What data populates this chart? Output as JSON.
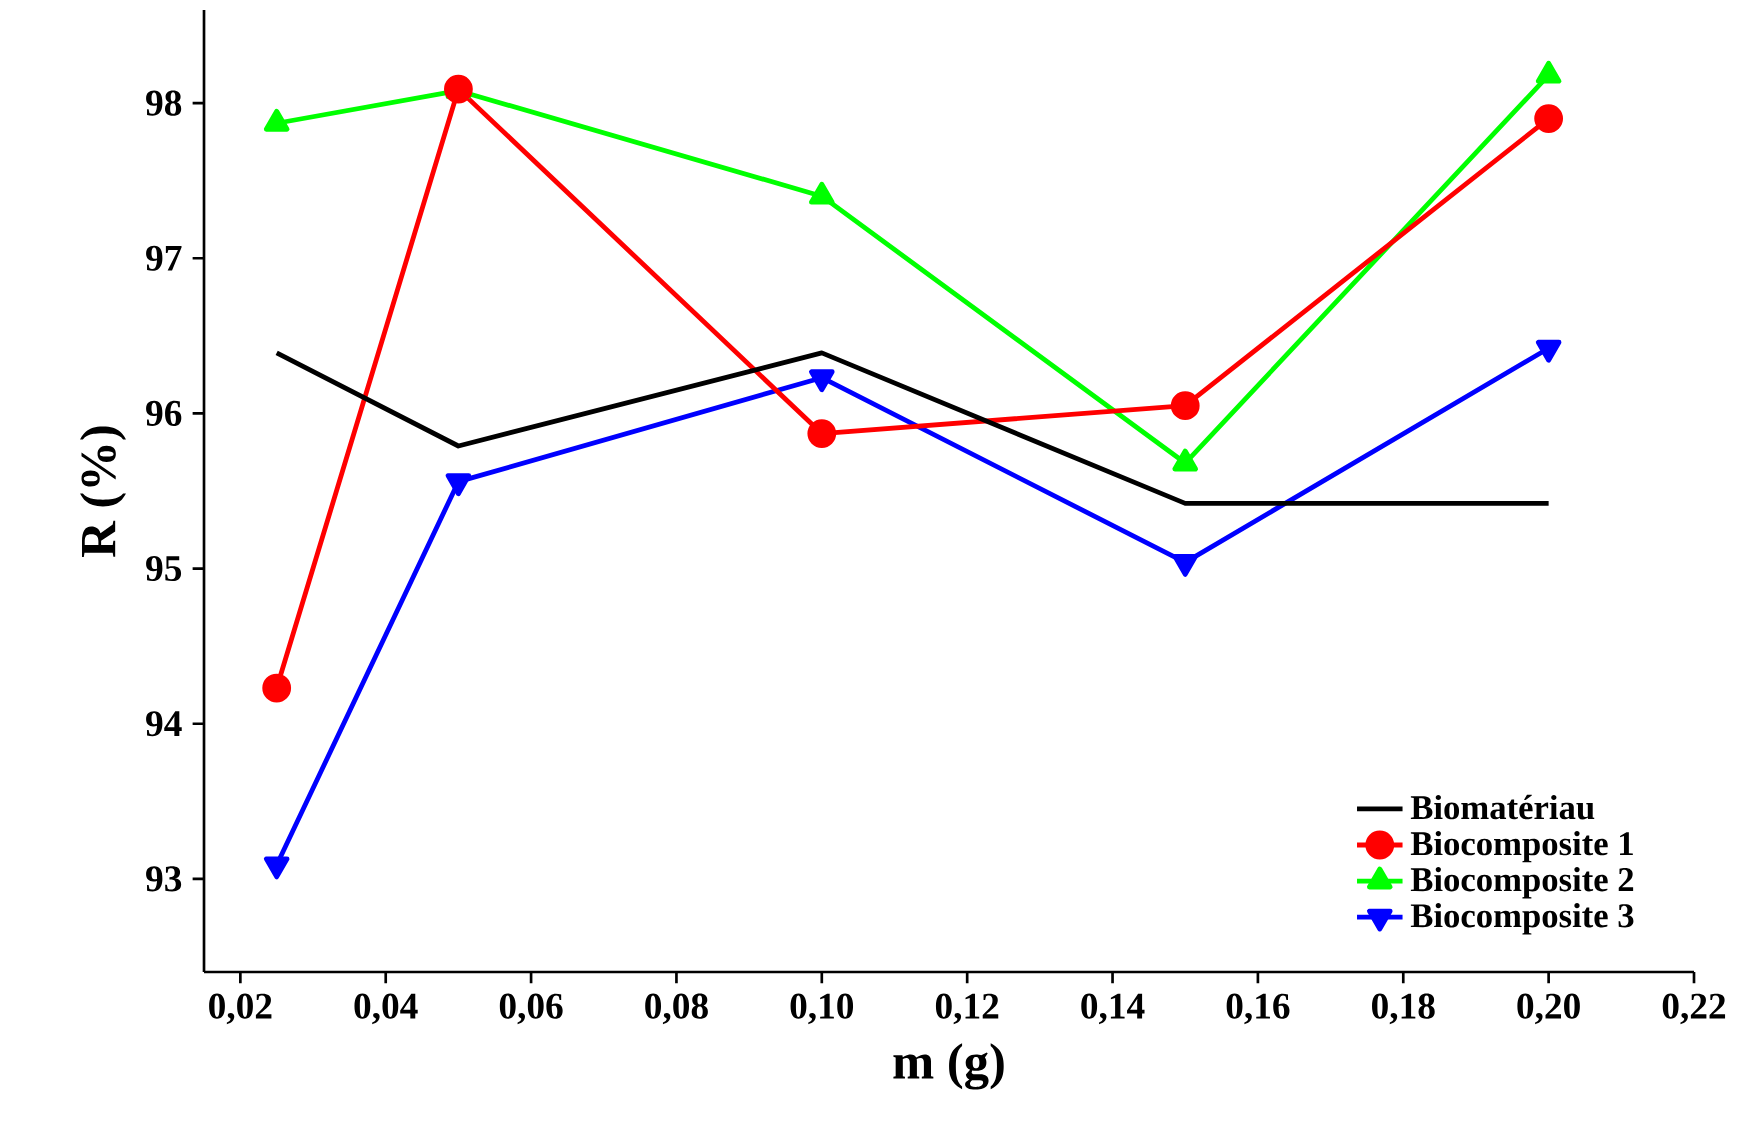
{
  "chart_data": {
    "type": "line",
    "xlabel": "m (g)",
    "ylabel": "R (%)",
    "x": [
      0.025,
      0.05,
      0.1,
      0.15,
      0.2
    ],
    "series": [
      {
        "name": "Biomatériau",
        "color": "#000000",
        "marker": "none",
        "values": [
          96.39,
          95.79,
          96.39,
          95.42,
          95.42
        ]
      },
      {
        "name": "Biocomposite 1",
        "color": "#ff0000",
        "marker": "circle",
        "values": [
          94.23,
          98.09,
          95.87,
          96.05,
          97.9
        ]
      },
      {
        "name": "Biocomposite 2",
        "color": "#00ff00",
        "marker": "triangle",
        "values": [
          97.87,
          98.08,
          97.4,
          95.68,
          98.18
        ]
      },
      {
        "name": "Biocomposite 3",
        "color": "#0000ff",
        "marker": "triangle-down",
        "values": [
          93.09,
          95.56,
          96.23,
          95.04,
          96.42
        ]
      }
    ],
    "xlim": [
      0.015,
      0.22
    ],
    "ylim": [
      92.4,
      98.6
    ],
    "xticks": [
      {
        "value": 0.02,
        "label": "0,02"
      },
      {
        "value": 0.04,
        "label": "0,04"
      },
      {
        "value": 0.06,
        "label": "0,06"
      },
      {
        "value": 0.08,
        "label": "0,08"
      },
      {
        "value": 0.1,
        "label": "0,10"
      },
      {
        "value": 0.12,
        "label": "0,12"
      },
      {
        "value": 0.14,
        "label": "0,14"
      },
      {
        "value": 0.16,
        "label": "0,16"
      },
      {
        "value": 0.18,
        "label": "0,18"
      },
      {
        "value": 0.2,
        "label": "0,20"
      },
      {
        "value": 0.22,
        "label": "0,22"
      }
    ],
    "yticks": [
      93,
      94,
      95,
      96,
      97,
      98
    ],
    "grid": false,
    "legend": "bottom right",
    "line_style": "solid"
  }
}
